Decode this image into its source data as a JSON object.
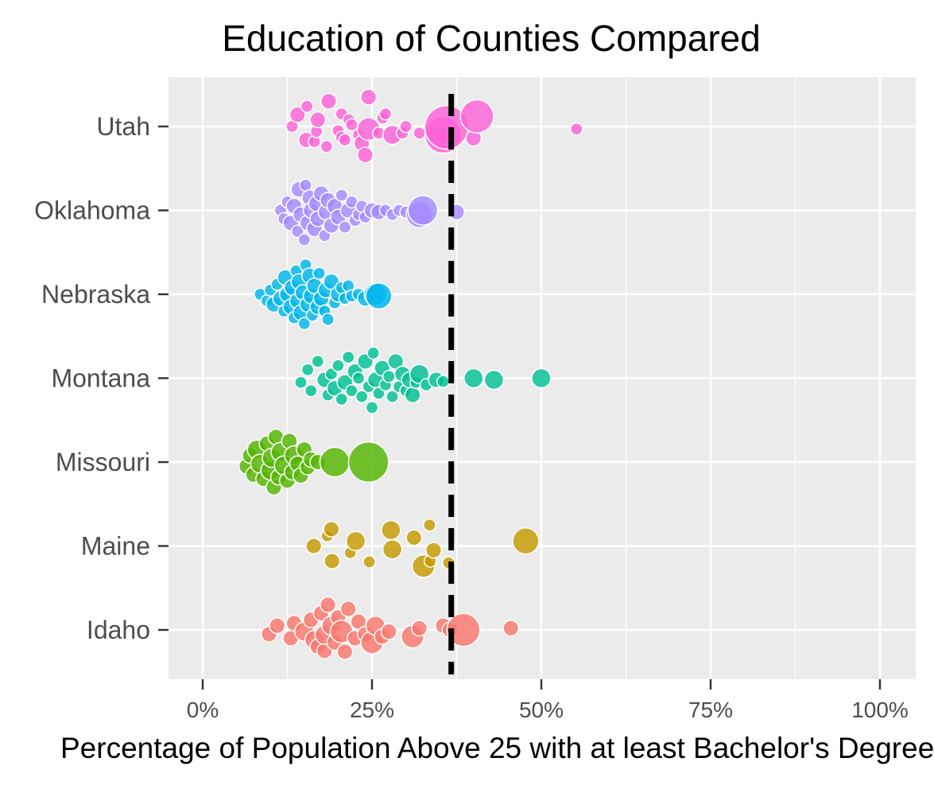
{
  "chart_data": {
    "type": "scatter",
    "title": "Education of Counties Compared",
    "xlabel": "Percentage of Population Above 25 with at least Bachelor's Degree",
    "ylabel": "",
    "xlim": [
      -0.01,
      1.01
    ],
    "x_ticks": [
      0,
      0.25,
      0.5,
      0.75,
      1.0
    ],
    "x_tick_labels": [
      "0%",
      "25%",
      "50%",
      "75%",
      "100%"
    ],
    "categories": [
      "Idaho",
      "Maine",
      "Missouri",
      "Montana",
      "Nebraska",
      "Oklahoma",
      "Utah"
    ],
    "reference_line": {
      "x": 0.367,
      "style": "dashed",
      "color": "#000000"
    },
    "grid": true,
    "legend": "none",
    "series": [
      {
        "state": "Idaho",
        "color": "#F8766D",
        "points": [
          [
            0.098,
            0.05,
            4
          ],
          [
            0.11,
            -0.05,
            4
          ],
          [
            0.13,
            0.1,
            4
          ],
          [
            0.135,
            -0.08,
            4
          ],
          [
            0.15,
            0.02,
            5
          ],
          [
            0.16,
            -0.12,
            4
          ],
          [
            0.165,
            0.12,
            5
          ],
          [
            0.17,
            0.2,
            4
          ],
          [
            0.175,
            -0.2,
            4
          ],
          [
            0.18,
            0.25,
            4
          ],
          [
            0.18,
            0.06,
            5
          ],
          [
            0.185,
            -0.3,
            4
          ],
          [
            0.19,
            -0.05,
            5
          ],
          [
            0.195,
            0.15,
            4
          ],
          [
            0.2,
            -0.15,
            4
          ],
          [
            0.205,
            0.02,
            6
          ],
          [
            0.21,
            0.26,
            4
          ],
          [
            0.215,
            -0.25,
            4
          ],
          [
            0.225,
            0.1,
            4
          ],
          [
            0.23,
            -0.1,
            4
          ],
          [
            0.24,
            0.05,
            4
          ],
          [
            0.25,
            0.15,
            6
          ],
          [
            0.255,
            -0.05,
            5
          ],
          [
            0.265,
            0.08,
            4
          ],
          [
            0.275,
            0.02,
            4
          ],
          [
            0.31,
            0.08,
            6
          ],
          [
            0.32,
            -0.02,
            4
          ],
          [
            0.355,
            -0.05,
            4
          ],
          [
            0.365,
            0.0,
            4
          ],
          [
            0.385,
            0.0,
            9
          ],
          [
            0.455,
            -0.02,
            4
          ]
        ]
      },
      {
        "state": "Maine",
        "color": "#C49A00",
        "points": [
          [
            0.164,
            0.0,
            4
          ],
          [
            0.184,
            -0.12,
            3
          ],
          [
            0.191,
            0.18,
            4
          ],
          [
            0.19,
            -0.2,
            4
          ],
          [
            0.218,
            0.08,
            3
          ],
          [
            0.226,
            -0.06,
            5
          ],
          [
            0.246,
            0.19,
            3
          ],
          [
            0.28,
            0.04,
            5
          ],
          [
            0.278,
            -0.19,
            5
          ],
          [
            0.312,
            -0.1,
            4
          ],
          [
            0.326,
            0.24,
            6
          ],
          [
            0.335,
            -0.25,
            3
          ],
          [
            0.336,
            0.18,
            3
          ],
          [
            0.341,
            0.05,
            4
          ],
          [
            0.363,
            0.2,
            3
          ],
          [
            0.477,
            -0.06,
            7
          ]
        ]
      },
      {
        "state": "Missouri",
        "color": "#53B400",
        "points": [
          [
            0.065,
            0.05,
            4
          ],
          [
            0.07,
            -0.08,
            4
          ],
          [
            0.075,
            0.15,
            4
          ],
          [
            0.08,
            -0.15,
            5
          ],
          [
            0.085,
            0.02,
            5
          ],
          [
            0.09,
            0.2,
            4
          ],
          [
            0.095,
            -0.22,
            4
          ],
          [
            0.1,
            0.1,
            5
          ],
          [
            0.102,
            -0.05,
            5
          ],
          [
            0.105,
            0.3,
            4
          ],
          [
            0.108,
            -0.3,
            4
          ],
          [
            0.112,
            0.18,
            4
          ],
          [
            0.115,
            -0.12,
            5
          ],
          [
            0.12,
            0.04,
            5
          ],
          [
            0.125,
            0.22,
            4
          ],
          [
            0.128,
            -0.25,
            4
          ],
          [
            0.132,
            0.12,
            4
          ],
          [
            0.135,
            -0.08,
            5
          ],
          [
            0.14,
            0.02,
            4
          ],
          [
            0.145,
            0.16,
            4
          ],
          [
            0.15,
            -0.15,
            4
          ],
          [
            0.155,
            0.06,
            4
          ],
          [
            0.16,
            -0.03,
            4
          ],
          [
            0.17,
            0.0,
            4
          ],
          [
            0.195,
            0.0,
            8
          ],
          [
            0.245,
            0.0,
            11
          ]
        ]
      },
      {
        "state": "Montana",
        "color": "#00C094",
        "points": [
          [
            0.145,
            0.05,
            3
          ],
          [
            0.155,
            -0.1,
            3
          ],
          [
            0.16,
            0.15,
            3
          ],
          [
            0.17,
            -0.2,
            3
          ],
          [
            0.18,
            0.02,
            4
          ],
          [
            0.185,
            0.2,
            3
          ],
          [
            0.19,
            -0.05,
            3
          ],
          [
            0.195,
            0.12,
            4
          ],
          [
            0.2,
            -0.15,
            3
          ],
          [
            0.205,
            0.25,
            3
          ],
          [
            0.21,
            0.05,
            4
          ],
          [
            0.215,
            -0.25,
            3
          ],
          [
            0.22,
            0.15,
            3
          ],
          [
            0.225,
            -0.08,
            4
          ],
          [
            0.23,
            0.0,
            3
          ],
          [
            0.235,
            0.22,
            3
          ],
          [
            0.24,
            -0.2,
            4
          ],
          [
            0.245,
            0.1,
            3
          ],
          [
            0.25,
            0.35,
            3
          ],
          [
            0.252,
            -0.3,
            3
          ],
          [
            0.255,
            0.02,
            4
          ],
          [
            0.26,
            0.18,
            3
          ],
          [
            0.265,
            -0.12,
            4
          ],
          [
            0.27,
            0.08,
            3
          ],
          [
            0.275,
            -0.02,
            3
          ],
          [
            0.28,
            0.22,
            3
          ],
          [
            0.285,
            -0.2,
            4
          ],
          [
            0.29,
            0.1,
            3
          ],
          [
            0.295,
            -0.05,
            4
          ],
          [
            0.3,
            0.15,
            3
          ],
          [
            0.305,
            0.02,
            4
          ],
          [
            0.31,
            0.2,
            4
          ],
          [
            0.315,
            0.05,
            3
          ],
          [
            0.32,
            -0.05,
            5
          ],
          [
            0.33,
            0.08,
            3
          ],
          [
            0.345,
            0.02,
            4
          ],
          [
            0.355,
            0.04,
            3
          ],
          [
            0.4,
            0.0,
            5
          ],
          [
            0.43,
            0.02,
            5
          ],
          [
            0.5,
            0.0,
            5
          ]
        ]
      },
      {
        "state": "Nebraska",
        "color": "#00B6EB",
        "points": [
          [
            0.085,
            0.0,
            3
          ],
          [
            0.095,
            0.08,
            3
          ],
          [
            0.1,
            -0.05,
            3
          ],
          [
            0.105,
            0.12,
            4
          ],
          [
            0.11,
            -0.12,
            3
          ],
          [
            0.115,
            0.05,
            4
          ],
          [
            0.12,
            0.2,
            3
          ],
          [
            0.122,
            -0.2,
            4
          ],
          [
            0.125,
            0.0,
            4
          ],
          [
            0.13,
            0.15,
            4
          ],
          [
            0.132,
            -0.08,
            4
          ],
          [
            0.135,
            0.28,
            3
          ],
          [
            0.138,
            -0.28,
            3
          ],
          [
            0.14,
            0.08,
            4
          ],
          [
            0.142,
            -0.15,
            4
          ],
          [
            0.145,
            0.22,
            4
          ],
          [
            0.148,
            -0.02,
            4
          ],
          [
            0.15,
            0.35,
            3
          ],
          [
            0.152,
            -0.35,
            3
          ],
          [
            0.155,
            0.12,
            4
          ],
          [
            0.158,
            -0.22,
            4
          ],
          [
            0.16,
            0.02,
            4
          ],
          [
            0.162,
            0.25,
            3
          ],
          [
            0.165,
            -0.1,
            4
          ],
          [
            0.17,
            0.15,
            4
          ],
          [
            0.172,
            -0.25,
            3
          ],
          [
            0.175,
            0.05,
            4
          ],
          [
            0.18,
            0.2,
            3
          ],
          [
            0.182,
            -0.05,
            4
          ],
          [
            0.185,
            0.3,
            3
          ],
          [
            0.19,
            -0.15,
            4
          ],
          [
            0.195,
            0.1,
            3
          ],
          [
            0.2,
            0.0,
            4
          ],
          [
            0.205,
            -0.08,
            3
          ],
          [
            0.21,
            0.05,
            3
          ],
          [
            0.215,
            -0.1,
            3
          ],
          [
            0.22,
            0.02,
            3
          ],
          [
            0.23,
            0.0,
            3
          ],
          [
            0.24,
            0.05,
            4
          ],
          [
            0.255,
            0.0,
            6
          ],
          [
            0.26,
            0.02,
            7
          ]
        ]
      },
      {
        "state": "Oklahoma",
        "color": "#A58AFF",
        "points": [
          [
            0.115,
            0.0,
            3
          ],
          [
            0.12,
            0.1,
            3
          ],
          [
            0.125,
            -0.1,
            3
          ],
          [
            0.13,
            0.15,
            4
          ],
          [
            0.135,
            -0.05,
            4
          ],
          [
            0.14,
            0.25,
            3
          ],
          [
            0.142,
            -0.25,
            4
          ],
          [
            0.145,
            0.05,
            4
          ],
          [
            0.15,
            0.35,
            3
          ],
          [
            0.152,
            -0.3,
            3
          ],
          [
            0.155,
            0.15,
            4
          ],
          [
            0.158,
            -0.15,
            4
          ],
          [
            0.16,
            0.0,
            4
          ],
          [
            0.165,
            0.22,
            4
          ],
          [
            0.168,
            -0.08,
            4
          ],
          [
            0.17,
            0.1,
            4
          ],
          [
            0.175,
            -0.2,
            4
          ],
          [
            0.18,
            0.3,
            3
          ],
          [
            0.182,
            0.02,
            4
          ],
          [
            0.185,
            -0.12,
            4
          ],
          [
            0.19,
            0.18,
            4
          ],
          [
            0.195,
            -0.05,
            4
          ],
          [
            0.2,
            0.08,
            4
          ],
          [
            0.205,
            -0.18,
            3
          ],
          [
            0.21,
            0.2,
            3
          ],
          [
            0.215,
            0.0,
            4
          ],
          [
            0.22,
            -0.1,
            3
          ],
          [
            0.225,
            0.12,
            3
          ],
          [
            0.23,
            0.05,
            3
          ],
          [
            0.235,
            -0.05,
            3
          ],
          [
            0.24,
            0.08,
            3
          ],
          [
            0.25,
            0.0,
            4
          ],
          [
            0.26,
            0.02,
            4
          ],
          [
            0.27,
            0.0,
            3
          ],
          [
            0.28,
            0.05,
            3
          ],
          [
            0.29,
            0.0,
            3
          ],
          [
            0.3,
            0.02,
            3
          ],
          [
            0.32,
            0.05,
            7
          ],
          [
            0.325,
            0.0,
            8
          ],
          [
            0.375,
            0.02,
            4
          ]
        ]
      },
      {
        "state": "Utah",
        "color": "#FB61D7",
        "points": [
          [
            0.132,
            0.0,
            3
          ],
          [
            0.14,
            -0.14,
            4
          ],
          [
            0.153,
            0.16,
            4
          ],
          [
            0.154,
            -0.24,
            3
          ],
          [
            0.165,
            0.18,
            3
          ],
          [
            0.168,
            0.06,
            3
          ],
          [
            0.17,
            -0.08,
            4
          ],
          [
            0.183,
            0.24,
            3
          ],
          [
            0.186,
            -0.3,
            4
          ],
          [
            0.2,
            0.05,
            3
          ],
          [
            0.205,
            0.13,
            3
          ],
          [
            0.205,
            -0.15,
            3
          ],
          [
            0.21,
            0.16,
            3
          ],
          [
            0.216,
            -0.08,
            3
          ],
          [
            0.22,
            -0.02,
            3
          ],
          [
            0.23,
            0.1,
            3
          ],
          [
            0.235,
            0.2,
            4
          ],
          [
            0.24,
            0.34,
            4
          ],
          [
            0.245,
            0.03,
            6
          ],
          [
            0.245,
            -0.35,
            4
          ],
          [
            0.26,
            0.08,
            3
          ],
          [
            0.266,
            -0.1,
            3
          ],
          [
            0.27,
            -0.15,
            3
          ],
          [
            0.28,
            0.1,
            5
          ],
          [
            0.295,
            0.08,
            3
          ],
          [
            0.3,
            0.0,
            3
          ],
          [
            0.32,
            0.08,
            3
          ],
          [
            0.352,
            0.12,
            3
          ],
          [
            0.355,
            0.1,
            10
          ],
          [
            0.36,
            0.01,
            12
          ],
          [
            0.4,
            0.14,
            4
          ],
          [
            0.405,
            -0.12,
            9
          ],
          [
            0.552,
            0.03,
            3
          ]
        ]
      }
    ]
  }
}
